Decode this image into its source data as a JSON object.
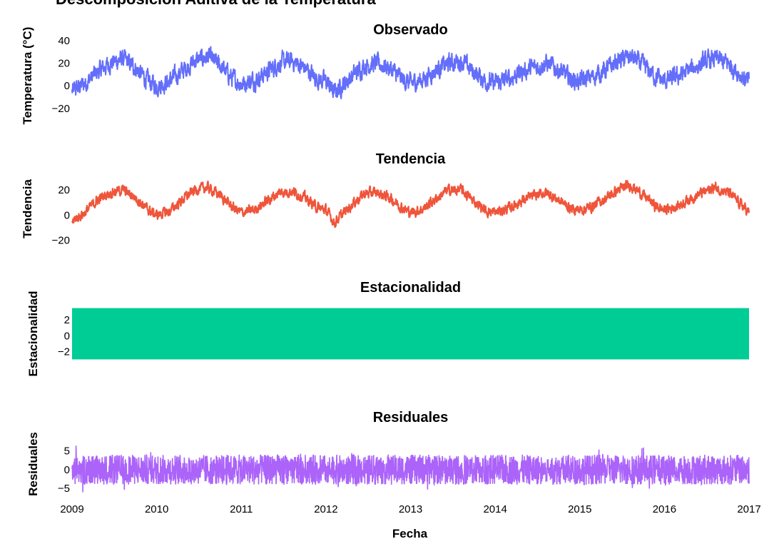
{
  "title": "Descomposición Aditiva de la Temperatura",
  "xlabel": "Fecha",
  "colors": {
    "observado": "#636efa",
    "tendencia": "#ef553b",
    "estacionalidad": "#00cc96",
    "residuales": "#ab63fa"
  },
  "chart_data": [
    {
      "type": "line",
      "title": "Observado",
      "ylabel": "Temperatura (°C)",
      "color": "#636efa",
      "xlim": [
        2009,
        2017
      ],
      "ylim": [
        -22,
        40
      ],
      "yticks": [
        40,
        20,
        0,
        -20
      ],
      "ytick_labels": [
        "40",
        "20",
        "0",
        "−20"
      ],
      "x": [
        2009.0,
        2009.15,
        2009.3,
        2009.45,
        2009.6,
        2009.75,
        2009.9,
        2010.0,
        2010.15,
        2010.3,
        2010.45,
        2010.6,
        2010.75,
        2010.9,
        2011.0,
        2011.15,
        2011.3,
        2011.45,
        2011.6,
        2011.75,
        2011.9,
        2012.0,
        2012.1,
        2012.3,
        2012.45,
        2012.6,
        2012.75,
        2012.9,
        2013.0,
        2013.15,
        2013.3,
        2013.45,
        2013.6,
        2013.75,
        2013.9,
        2014.0,
        2014.15,
        2014.3,
        2014.45,
        2014.6,
        2014.75,
        2014.9,
        2015.0,
        2015.15,
        2015.3,
        2015.45,
        2015.6,
        2015.75,
        2015.9,
        2016.0,
        2016.15,
        2016.3,
        2016.45,
        2016.6,
        2016.75,
        2016.9,
        2017.0
      ],
      "y": [
        -5,
        2,
        12,
        20,
        24,
        16,
        4,
        0,
        4,
        13,
        22,
        26,
        18,
        6,
        2,
        5,
        12,
        20,
        22,
        16,
        6,
        4,
        -6,
        8,
        18,
        20,
        16,
        6,
        2,
        6,
        14,
        20,
        22,
        12,
        4,
        2,
        6,
        12,
        16,
        20,
        14,
        6,
        4,
        8,
        14,
        22,
        26,
        18,
        8,
        4,
        8,
        14,
        20,
        24,
        20,
        10,
        2
      ]
    },
    {
      "type": "line",
      "title": "Tendencia",
      "ylabel": "Tendencia",
      "color": "#ef553b",
      "xlim": [
        2009,
        2017
      ],
      "ylim": [
        -22,
        32
      ],
      "yticks": [
        20,
        0,
        -20
      ],
      "ytick_labels": [
        "20",
        "0",
        "−20"
      ],
      "x": [
        2009.0,
        2009.15,
        2009.3,
        2009.45,
        2009.6,
        2009.75,
        2009.9,
        2010.0,
        2010.15,
        2010.3,
        2010.45,
        2010.6,
        2010.75,
        2010.9,
        2011.0,
        2011.15,
        2011.3,
        2011.45,
        2011.6,
        2011.75,
        2011.9,
        2012.0,
        2012.1,
        2012.3,
        2012.45,
        2012.6,
        2012.75,
        2012.9,
        2013.0,
        2013.15,
        2013.3,
        2013.45,
        2013.6,
        2013.75,
        2013.9,
        2014.0,
        2014.15,
        2014.3,
        2014.45,
        2014.6,
        2014.75,
        2014.9,
        2015.0,
        2015.15,
        2015.3,
        2015.45,
        2015.6,
        2015.75,
        2015.9,
        2016.0,
        2016.15,
        2016.3,
        2016.45,
        2016.6,
        2016.75,
        2016.9,
        2017.0
      ],
      "y": [
        -5,
        2,
        12,
        18,
        20,
        14,
        4,
        0,
        3,
        12,
        20,
        22,
        16,
        6,
        2,
        4,
        11,
        18,
        19,
        14,
        6,
        4,
        -6,
        8,
        17,
        18,
        14,
        6,
        2,
        5,
        13,
        20,
        20,
        11,
        3,
        2,
        5,
        11,
        15,
        18,
        12,
        5,
        4,
        7,
        13,
        20,
        24,
        16,
        7,
        4,
        7,
        13,
        18,
        22,
        18,
        9,
        2
      ]
    },
    {
      "type": "area",
      "title": "Estacionalidad",
      "ylabel": "Estacionalidad",
      "color": "#00cc96",
      "xlim": [
        2009,
        2017
      ],
      "ylim": [
        -4.5,
        5
      ],
      "yticks": [
        2,
        0,
        -2
      ],
      "ytick_labels": [
        "2",
        "0",
        "−2"
      ],
      "amplitude_range": [
        -3,
        3.5
      ]
    },
    {
      "type": "line",
      "title": "Residuales",
      "ylabel": "Residuales",
      "color": "#ab63fa",
      "xlim": [
        2009,
        2017
      ],
      "ylim": [
        -8,
        11
      ],
      "yticks": [
        5,
        0,
        -5
      ],
      "ytick_labels": [
        "5",
        "0",
        "−5"
      ],
      "range": [
        -6,
        7
      ],
      "xticks": [
        2009,
        2010,
        2011,
        2012,
        2013,
        2014,
        2015,
        2016,
        2017
      ],
      "xtick_labels": [
        "2009",
        "2010",
        "2011",
        "2012",
        "2013",
        "2014",
        "2015",
        "2016",
        "2017"
      ]
    }
  ]
}
